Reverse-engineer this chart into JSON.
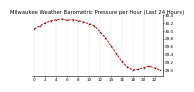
{
  "title": "Milwaukee Weather Barometric Pressure per Hour (Last 24 Hours)",
  "hours": [
    0,
    1,
    2,
    3,
    4,
    5,
    6,
    7,
    8,
    9,
    10,
    11,
    12,
    13,
    14,
    15,
    16,
    17,
    18,
    19,
    20,
    21,
    22,
    23
  ],
  "pressure": [
    30.05,
    30.12,
    30.2,
    30.25,
    30.28,
    30.3,
    30.27,
    30.28,
    30.26,
    30.22,
    30.18,
    30.12,
    29.98,
    29.82,
    29.62,
    29.42,
    29.22,
    29.08,
    29.0,
    29.02,
    29.06,
    29.1,
    29.05,
    29.0
  ],
  "line_color": "#cc0000",
  "marker_color": "#000000",
  "bg_color": "#ffffff",
  "grid_color": "#999999",
  "ylabel_color": "#000000",
  "ylim": [
    28.85,
    30.4
  ],
  "yticks": [
    29.0,
    29.2,
    29.4,
    29.6,
    29.8,
    30.0,
    30.2,
    30.4
  ],
  "ytick_labels": [
    "29.0",
    "29.2",
    "29.4",
    "29.6",
    "29.8",
    "30.0",
    "30.2",
    "30.4"
  ],
  "title_fontsize": 3.8,
  "tick_fontsize": 3.0,
  "line_width": 0.7,
  "marker_size": 1.5,
  "xtick_step": 2
}
